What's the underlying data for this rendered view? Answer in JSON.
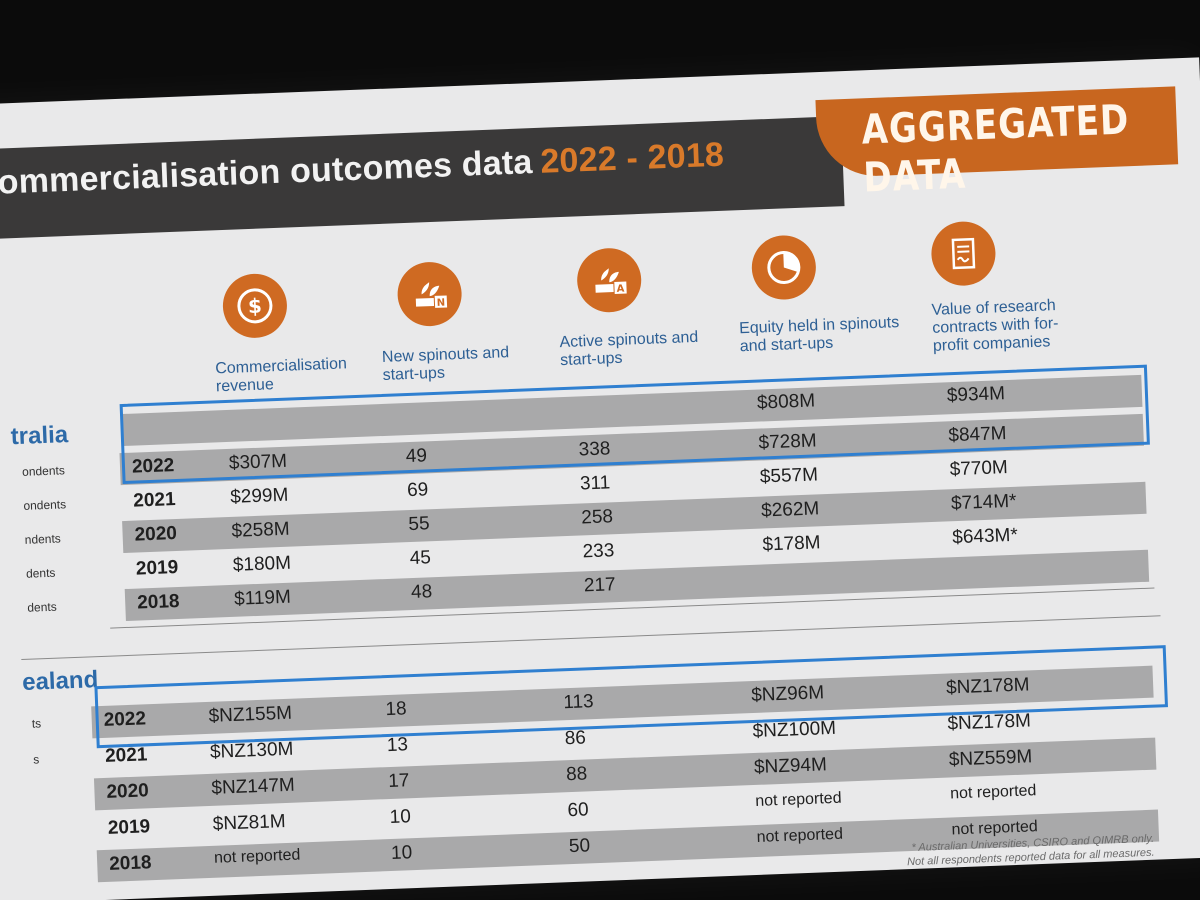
{
  "title": {
    "main": "Commercialisation outcomes data",
    "years": "2022 - 2018"
  },
  "badge": "AGGREGATED DATA",
  "columns": [
    {
      "label": "Commercialisation revenue",
      "icon": "dollar-icon"
    },
    {
      "label": "New spinouts and start-ups",
      "icon": "new-spinout-icon"
    },
    {
      "label": "Active spinouts and start-ups",
      "icon": "active-spinout-icon"
    },
    {
      "label": "Equity held in spinouts and start-ups",
      "icon": "pie-chart-icon"
    },
    {
      "label": "Value of research contracts with for-profit companies",
      "icon": "contract-icon"
    }
  ],
  "australia": {
    "label": "tralia",
    "respondents": [
      "ondents",
      "ondents",
      "ndents",
      "dents",
      "dents"
    ],
    "top_value": "$934M",
    "top_equity": "$808M",
    "rows": [
      {
        "year": "2022",
        "revenue": "$307M",
        "new": "49",
        "active": "338",
        "equity": "$728M",
        "contracts": "$847M"
      },
      {
        "year": "2021",
        "revenue": "$299M",
        "new": "69",
        "active": "311",
        "equity": "$557M",
        "contracts": "$770M"
      },
      {
        "year": "2020",
        "revenue": "$258M",
        "new": "55",
        "active": "258",
        "equity": "$262M",
        "contracts": "$714M*"
      },
      {
        "year": "2019",
        "revenue": "$180M",
        "new": "45",
        "active": "233",
        "equity": "$178M",
        "contracts": "$643M*"
      },
      {
        "year": "2018",
        "revenue": "$119M",
        "new": "48",
        "active": "217",
        "equity": "",
        "contracts": ""
      }
    ]
  },
  "new_zealand": {
    "label": "ealand",
    "respondents": [
      "ts",
      "s"
    ],
    "rows": [
      {
        "year": "2022",
        "revenue": "$NZ155M",
        "new": "18",
        "active": "113",
        "equity": "$NZ96M",
        "contracts": "$NZ178M"
      },
      {
        "year": "2021",
        "revenue": "$NZ130M",
        "new": "13",
        "active": "86",
        "equity": "$NZ100M",
        "contracts": "$NZ178M"
      },
      {
        "year": "2020",
        "revenue": "$NZ147M",
        "new": "17",
        "active": "88",
        "equity": "$NZ94M",
        "contracts": "$NZ559M"
      },
      {
        "year": "2019",
        "revenue": "$NZ81M",
        "new": "10",
        "active": "60",
        "equity": "not reported",
        "contracts": "not reported"
      },
      {
        "year": "2018",
        "revenue": "not reported",
        "new": "10",
        "active": "50",
        "equity": "not reported",
        "contracts": "not reported"
      }
    ]
  },
  "footnote": {
    "line1": "* Australian Universities, CSIRO and QIMRB only.",
    "line2": "Not all respondents reported data for all measures."
  },
  "colors": {
    "orange": "#cf6a22",
    "blue": "#2f7fd0",
    "dark": "#3a3939"
  }
}
